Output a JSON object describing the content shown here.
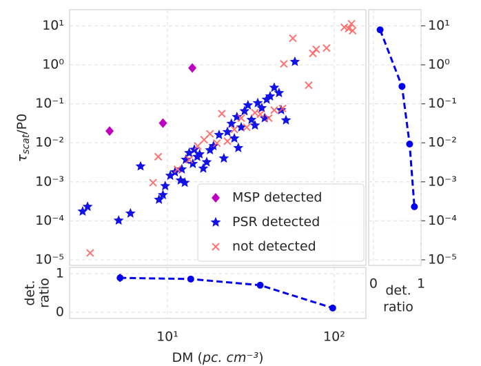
{
  "chart_data": [
    {
      "type": "scatter",
      "ylabel": [
        "τ",
        "scat",
        "/P0"
      ],
      "xlog": true,
      "ylog": true,
      "xlim": [
        2.59,
        155
      ],
      "ylim": [
        7.2e-06,
        26
      ],
      "xticks": [
        10,
        100
      ],
      "show_xticklabels": false,
      "yticks": [
        {
          "value": 1e-05,
          "label": "10⁻⁵"
        },
        {
          "value": 0.0001,
          "label": "10⁻⁴"
        },
        {
          "value": 0.001,
          "label": "10⁻³"
        },
        {
          "value": 0.01,
          "label": "10⁻²"
        },
        {
          "value": 0.1,
          "label": "10⁻¹"
        },
        {
          "value": 1,
          "label": "10⁰"
        },
        {
          "value": 10,
          "label": "10¹"
        }
      ],
      "grid": true,
      "yaxis": "left",
      "legend": "lower right",
      "series": [
        {
          "name": "MSP detected",
          "color": "#bf00bf",
          "marker": "diamond",
          "x": [
            4.5,
            9.4,
            14.1
          ],
          "values": [
            0.02,
            0.032,
            0.83
          ]
        },
        {
          "name": "PSR detected",
          "color": "#1212e6",
          "marker": "star",
          "x": [
            3.1,
            3.32,
            5.1,
            6.0,
            6.9,
            8.9,
            9.4,
            9.7,
            10.4,
            11.1,
            12.0,
            12.7,
            12.2,
            12.9,
            13.5,
            14.2,
            14.5,
            15.1,
            15.6,
            16.4,
            17.2,
            18.0,
            18.9,
            20.4,
            21.8,
            22.9,
            24.2,
            25.2,
            26.1,
            26.6,
            27.7,
            29.0,
            30.4,
            31.9,
            33.5,
            34.8,
            36.8,
            38.3,
            39.4,
            41.3,
            43.7,
            46.7,
            48.1,
            51.4,
            58.1
          ],
          "values": [
            0.000174,
            0.00023,
            0.000102,
            0.000155,
            0.0025,
            0.00035,
            0.00046,
            0.00078,
            0.00144,
            0.00177,
            0.00109,
            0.00095,
            0.0021,
            0.0037,
            0.0055,
            0.0029,
            0.0067,
            0.0044,
            0.0051,
            0.0022,
            0.0032,
            0.0065,
            0.0083,
            0.016,
            0.004,
            0.019,
            0.031,
            0.013,
            0.046,
            0.0074,
            0.025,
            0.065,
            0.092,
            0.039,
            0.028,
            0.105,
            0.078,
            0.043,
            0.129,
            0.156,
            0.26,
            0.19,
            0.069,
            0.038,
            1.2
          ]
        },
        {
          "name": "not detected",
          "color": "#ff5a5a",
          "marker": "x",
          "x": [
            3.44,
            8.2,
            8.8,
            11.5,
            13.5,
            15.2,
            16.6,
            18.0,
            19.8,
            21.2,
            22.9,
            25.2,
            27.7,
            29.9,
            33.5,
            36.1,
            40.5,
            43.7,
            49.0,
            49.9,
            56.5,
            70.3,
            74.5,
            78,
            90,
            115,
            122,
            127,
            129
          ],
          "values": [
            1.5e-05,
            0.00095,
            0.0044,
            0.0021,
            0.0037,
            0.0083,
            0.012,
            0.017,
            0.0098,
            0.056,
            0.011,
            0.022,
            0.043,
            0.025,
            0.059,
            0.054,
            0.043,
            0.069,
            0.076,
            1.06,
            4.8,
            0.3,
            1.96,
            2.5,
            2.7,
            9.2,
            8.5,
            11.3,
            7.5
          ]
        }
      ]
    },
    {
      "type": "line",
      "xlabel": [
        "det.",
        "ratio"
      ],
      "ylog": true,
      "xlim": [
        -0.1,
        1.0
      ],
      "ylim": [
        7.2e-06,
        26
      ],
      "xticks": [
        0,
        1
      ],
      "yticks": [
        {
          "value": 1e-05,
          "label": "10⁻⁵"
        },
        {
          "value": 0.0001,
          "label": "10⁻⁴"
        },
        {
          "value": 0.001,
          "label": "10⁻³"
        },
        {
          "value": 0.01,
          "label": "10⁻²"
        },
        {
          "value": 0.1,
          "label": "10⁻¹"
        },
        {
          "value": 1,
          "label": "10⁰"
        },
        {
          "value": 10,
          "label": "10¹"
        }
      ],
      "grid": true,
      "yaxis": "right",
      "series": [
        {
          "color": "#0000ee",
          "x": [
            0.14,
            0.6,
            0.76,
            0.86
          ],
          "values": [
            7.9,
            0.28,
            0.0093,
            0.00023
          ]
        }
      ]
    },
    {
      "type": "line",
      "ylabel": [
        "det.",
        "ratio"
      ],
      "xlabel": [
        "DM (",
        "pc. cm⁻³",
        ")"
      ],
      "xlog": true,
      "xlim": [
        2.59,
        155
      ],
      "ylim": [
        -0.16,
        1.16
      ],
      "xticks": [
        {
          "value": 10,
          "label": "10¹"
        },
        {
          "value": 100,
          "label": "10²"
        }
      ],
      "yticks": [
        0,
        1
      ],
      "grid": true,
      "yaxis": "left",
      "series": [
        {
          "color": "#0000ee",
          "x": [
            5.2,
            13.8,
            36,
            98
          ],
          "values": [
            0.89,
            0.86,
            0.7,
            0.11
          ],
          "errors": [
            0.1,
            0.03,
            0.02,
            0.02
          ]
        }
      ]
    }
  ]
}
